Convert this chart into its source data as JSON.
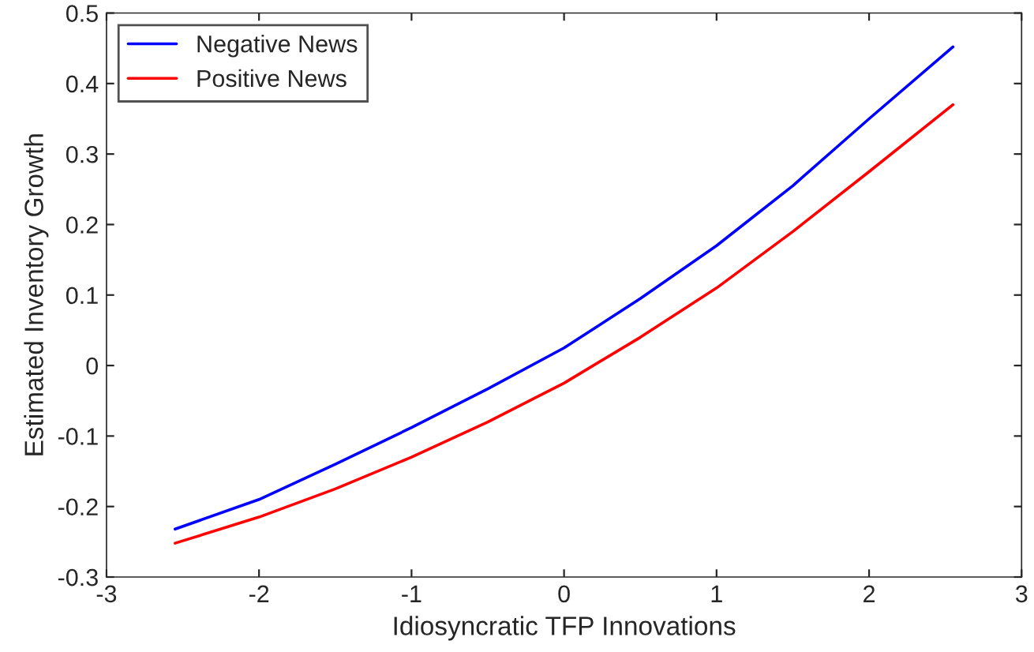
{
  "chart_data": {
    "type": "line",
    "xlabel": "Idiosyncratic TFP Innovations",
    "ylabel": "Estimated Inventory Growth",
    "x": [
      -2.55,
      -2,
      -1.5,
      -1,
      -0.5,
      0,
      0.5,
      1,
      1.5,
      2,
      2.55
    ],
    "series": [
      {
        "name": "Negative News",
        "color": "#0000ff",
        "values": [
          -0.232,
          -0.19,
          -0.14,
          -0.088,
          -0.033,
          0.025,
          0.095,
          0.17,
          0.255,
          0.35,
          0.452
        ]
      },
      {
        "name": "Positive News",
        "color": "#ff0000",
        "values": [
          -0.252,
          -0.215,
          -0.175,
          -0.13,
          -0.08,
          -0.025,
          0.04,
          0.11,
          0.19,
          0.275,
          0.37
        ]
      }
    ],
    "xlim": [
      -3,
      3
    ],
    "xticks": [
      -3,
      -2,
      -1,
      0,
      1,
      2,
      3
    ],
    "ylim": [
      -0.3,
      0.5
    ],
    "yticks": [
      -0.3,
      -0.2,
      -0.1,
      0,
      0.1,
      0.2,
      0.3,
      0.4,
      0.5
    ],
    "legend": "top left",
    "grid": false,
    "line_style": "solid",
    "marker": "none"
  }
}
